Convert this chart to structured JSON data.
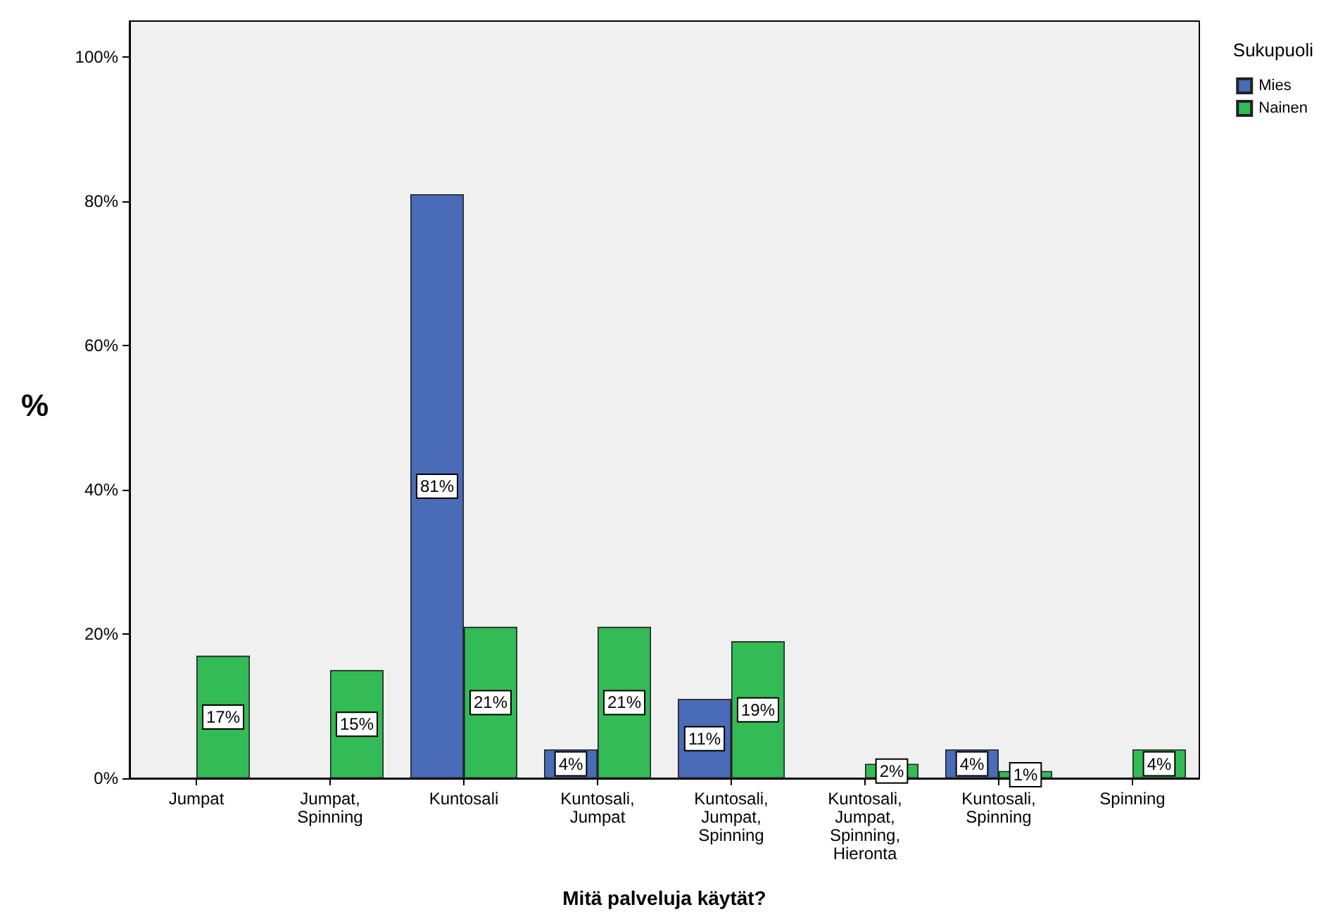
{
  "chart_data": {
    "type": "bar",
    "xlabel": "Mitä palveluja käytät?",
    "ylabel": "%",
    "legend_title": "Sukupuoli",
    "categories": [
      "Jumpat",
      "Jumpat, Spinning",
      "Kuntosali",
      "Kuntosali, Jumpat",
      "Kuntosali, Jumpat, Spinning",
      "Kuntosali, Jumpat, Spinning, Hieronta",
      "Kuntosali, Spinning",
      "Spinning"
    ],
    "series": [
      {
        "name": "Mies",
        "color": "#4a6bb8",
        "values": [
          null,
          null,
          81,
          4,
          11,
          null,
          4,
          null
        ],
        "value_labels": [
          null,
          null,
          "81%",
          "4%",
          "11%",
          null,
          "4%",
          null
        ]
      },
      {
        "name": "Nainen",
        "color": "#33bb55",
        "values": [
          17,
          15,
          21,
          21,
          19,
          2,
          1,
          4
        ],
        "value_labels": [
          "17%",
          "15%",
          "21%",
          "21%",
          "19%",
          "2%",
          "1%",
          "4%"
        ]
      }
    ],
    "ylim": [
      0,
      105
    ],
    "yticks": [
      {
        "value": 0,
        "label": "0%"
      },
      {
        "value": 20,
        "label": "20%"
      },
      {
        "value": 40,
        "label": "40%"
      },
      {
        "value": 60,
        "label": "60%"
      },
      {
        "value": 80,
        "label": "80%"
      },
      {
        "value": 100,
        "label": "100%"
      }
    ],
    "grid": false,
    "legend": "top right"
  }
}
